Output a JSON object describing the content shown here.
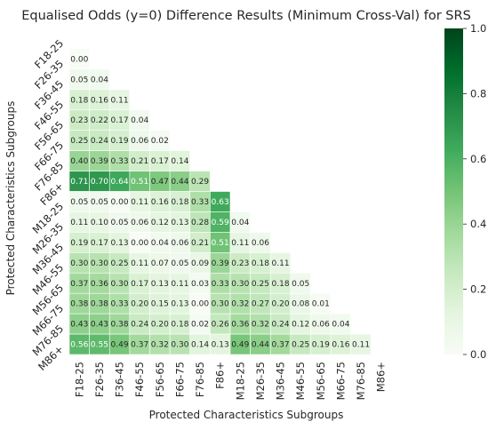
{
  "chart_data": {
    "type": "heatmap",
    "title": "Equalised Odds (y=0)  Difference Results (Minimum Cross-Val) for SRS",
    "xlabel": "Protected Characteristics Subgroups",
    "ylabel": "Protected Characteristics Subgroups",
    "categories": [
      "F18-25",
      "F26-35",
      "F36-45",
      "F46-55",
      "F56-65",
      "F66-75",
      "F76-85",
      "F86+",
      "M18-25",
      "M26-35",
      "M36-45",
      "M46-55",
      "M56-65",
      "M66-75",
      "M76-85",
      "M86+"
    ],
    "lower_triangle": [
      [],
      [
        0.0
      ],
      [
        0.05,
        0.04
      ],
      [
        0.18,
        0.16,
        0.11
      ],
      [
        0.23,
        0.22,
        0.17,
        0.04
      ],
      [
        0.25,
        0.24,
        0.19,
        0.06,
        0.02
      ],
      [
        0.4,
        0.39,
        0.33,
        0.21,
        0.17,
        0.14
      ],
      [
        0.71,
        0.7,
        0.64,
        0.51,
        0.47,
        0.44,
        0.29
      ],
      [
        0.05,
        0.05,
        0.0,
        0.11,
        0.16,
        0.18,
        0.33,
        0.63
      ],
      [
        0.11,
        0.1,
        0.05,
        0.06,
        0.12,
        0.13,
        0.28,
        0.59,
        0.04
      ],
      [
        0.19,
        0.17,
        0.13,
        0.0,
        0.04,
        0.06,
        0.21,
        0.51,
        0.11,
        0.06
      ],
      [
        0.3,
        0.3,
        0.25,
        0.11,
        0.07,
        0.05,
        0.09,
        0.39,
        0.23,
        0.18,
        0.11
      ],
      [
        0.37,
        0.36,
        0.3,
        0.17,
        0.13,
        0.11,
        0.03,
        0.33,
        0.3,
        0.25,
        0.18,
        0.05
      ],
      [
        0.38,
        0.38,
        0.33,
        0.2,
        0.15,
        0.13,
        0.0,
        0.3,
        0.32,
        0.27,
        0.2,
        0.08,
        0.01
      ],
      [
        0.43,
        0.43,
        0.38,
        0.24,
        0.2,
        0.18,
        0.02,
        0.26,
        0.36,
        0.32,
        0.24,
        0.12,
        0.06,
        0.04
      ],
      [
        0.56,
        0.55,
        0.49,
        0.37,
        0.32,
        0.3,
        0.14,
        0.13,
        0.49,
        0.44,
        0.37,
        0.25,
        0.19,
        0.16,
        0.11
      ]
    ],
    "value_format": "2 decimals",
    "colormap": "Greens",
    "vmin": 0.0,
    "vmax": 1.0,
    "colorbar_ticks": [
      "0.0",
      "0.2",
      "0.4",
      "0.6",
      "0.8",
      "1.0"
    ],
    "grid": "white cell borders",
    "legend": "colorbar right"
  }
}
